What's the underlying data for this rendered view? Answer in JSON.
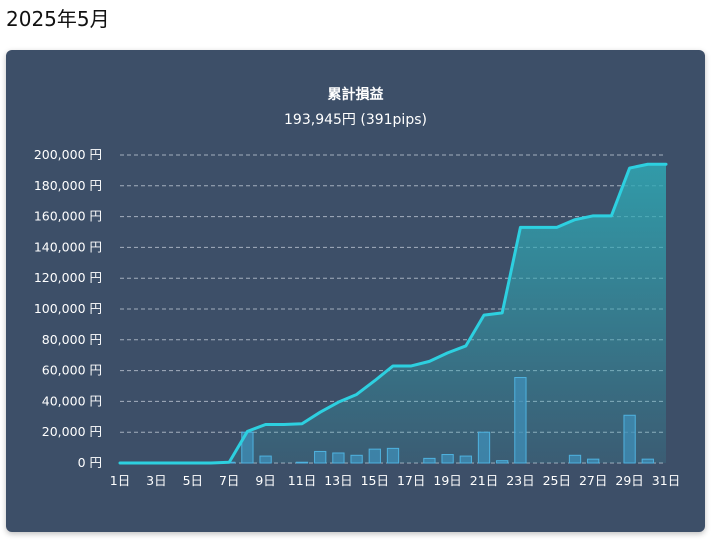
{
  "page": {
    "month_title": "2025年5月"
  },
  "chart_header": {
    "title": "累計損益",
    "subtitle": "193,945円 (391pips)"
  },
  "colors": {
    "card_background": "#3d4f68",
    "line": "#2dd0e0",
    "area_top": "#2fa8b4",
    "bar_fill": "#3f8fb8",
    "bar_stroke": "#4fb2df",
    "grid": "#c7cfdb"
  },
  "chart_data": {
    "type": "line",
    "title": "累計損益",
    "subtitle": "193,945円 (391pips)",
    "x_tick_labels": [
      "1日",
      "3日",
      "5日",
      "7日",
      "9日",
      "11日",
      "13日",
      "15日",
      "17日",
      "19日",
      "21日",
      "23日",
      "25日",
      "27日",
      "29日",
      "31日"
    ],
    "y_tick_labels": [
      "0 円",
      "20,000 円",
      "40,000 円",
      "60,000 円",
      "80,000 円",
      "100,000 円",
      "120,000 円",
      "140,000 円",
      "160,000 円",
      "180,000 円",
      "200,000 円"
    ],
    "ylim": [
      0,
      200000
    ],
    "grid": true,
    "days": [
      1,
      2,
      3,
      4,
      5,
      6,
      7,
      8,
      9,
      10,
      11,
      12,
      13,
      14,
      15,
      16,
      17,
      18,
      19,
      20,
      21,
      22,
      23,
      24,
      25,
      26,
      27,
      28,
      29,
      30,
      31
    ],
    "series": [
      {
        "kind": "line-area",
        "values": [
          0,
          0,
          0,
          0,
          0,
          0,
          500,
          20500,
          25000,
          25000,
          25500,
          33000,
          39500,
          44500,
          53500,
          63000,
          63000,
          66000,
          71500,
          76000,
          96000,
          97500,
          153000,
          153000,
          153000,
          158000,
          160500,
          160500,
          191500,
          194000,
          194000
        ]
      },
      {
        "kind": "bar",
        "values": [
          0,
          0,
          0,
          0,
          0,
          0,
          500,
          20000,
          4500,
          0,
          500,
          7500,
          6500,
          5000,
          9000,
          9500,
          0,
          3000,
          5500,
          4500,
          20000,
          1500,
          55500,
          0,
          0,
          5000,
          2500,
          0,
          31000,
          2500,
          0
        ]
      }
    ]
  }
}
